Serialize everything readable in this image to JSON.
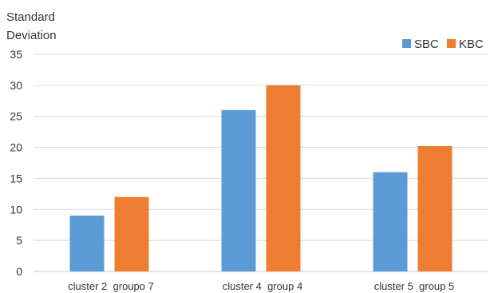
{
  "chart_data": {
    "type": "bar",
    "title": "",
    "xlabel": "",
    "ylabel_lines": [
      "Standard",
      "Deviation"
    ],
    "categories": [
      "cluster 2  groupo 7",
      "cluster 4  group 4",
      "cluster 5  group 5"
    ],
    "series": [
      {
        "name": "SBC",
        "values": [
          9,
          26,
          16
        ],
        "color": "#5b9bd5"
      },
      {
        "name": "KBC",
        "values": [
          12,
          30,
          20.2
        ],
        "color": "#ed7d31"
      }
    ],
    "ylim": [
      0,
      35
    ],
    "yticks": [
      "0",
      "5",
      "10",
      "15",
      "20",
      "25",
      "30",
      "35"
    ],
    "grid": true,
    "legend_position": "top-right"
  }
}
